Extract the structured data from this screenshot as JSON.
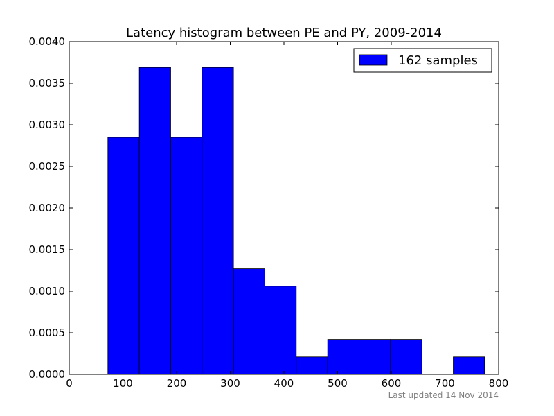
{
  "chart_data": {
    "type": "bar",
    "title": "Latency histogram between PE and PY, 2009-2014",
    "xlabel": "",
    "ylabel": "",
    "xlim": [
      0,
      800
    ],
    "ylim": [
      0,
      0.004
    ],
    "xticks": [
      "0",
      "100",
      "200",
      "300",
      "400",
      "500",
      "600",
      "700",
      "800"
    ],
    "yticks": [
      "0.0000",
      "0.0005",
      "0.0010",
      "0.0015",
      "0.0020",
      "0.0025",
      "0.0030",
      "0.0035",
      "0.0040"
    ],
    "bin_edges": [
      72,
      130.5,
      189,
      247.5,
      306,
      364.5,
      423,
      481.5,
      540,
      598.5,
      657,
      715.5,
      774
    ],
    "values": [
      0.00285,
      0.00369,
      0.00285,
      0.00369,
      0.00127,
      0.00106,
      0.00021,
      0.00042,
      0.00042,
      0.00042,
      0,
      0.00021
    ],
    "series": [
      {
        "name": "162 samples",
        "color": "#0000ff"
      }
    ],
    "legend_position": "top-right",
    "grid": false
  },
  "footer": {
    "text": "Last updated 14 Nov 2014"
  },
  "colors": {
    "bar_fill": "#0000ff",
    "bar_edge": "#000000",
    "footer": "#808080"
  }
}
